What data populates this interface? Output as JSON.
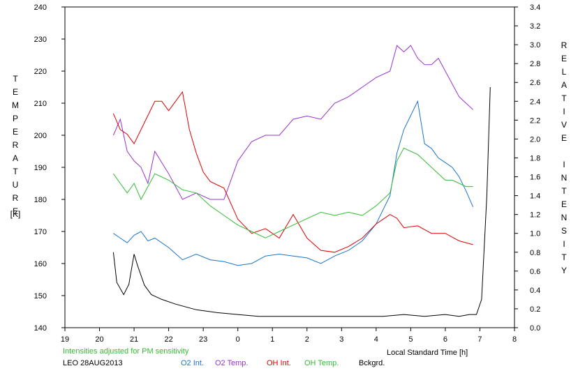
{
  "chart_data": {
    "type": "line",
    "xlabel": "Local Standard Time [h]",
    "ylabel_left": "TEMPERATURE",
    "ylabel_left_unit": "[K]",
    "ylabel_right": "RELATIVE INTENSITY",
    "x_ticks": [
      "19",
      "20",
      "21",
      "22",
      "23",
      "0",
      "1",
      "2",
      "3",
      "4",
      "5",
      "6",
      "7",
      "8"
    ],
    "x_range_hours_after_19": [
      0,
      13
    ],
    "y_left_range": [
      140,
      240
    ],
    "y_left_ticks": [
      "140",
      "150",
      "160",
      "170",
      "180",
      "190",
      "200",
      "210",
      "220",
      "230",
      "240"
    ],
    "y_right_range": [
      0,
      3.4
    ],
    "y_right_ticks": [
      "0.0",
      "0.2",
      "0.4",
      "0.6",
      "0.8",
      "1.0",
      "1.2",
      "1.4",
      "1.6",
      "1.8",
      "2.0",
      "2.2",
      "2.4",
      "2.6",
      "2.8",
      "3.0",
      "3.2",
      "3.4"
    ],
    "note": "Intensities adjusted for PM sensitivity",
    "station": "LEO 28AUG2013",
    "series": [
      {
        "name": "O2 Int.",
        "axis": "right",
        "color": "#1874cd",
        "x": [
          20.4,
          20.6,
          20.8,
          21.0,
          21.2,
          21.4,
          21.6,
          22.0,
          22.4,
          22.8,
          23.2,
          23.6,
          24.0,
          24.4,
          24.8,
          25.2,
          25.6,
          26.0,
          26.4,
          26.8,
          27.2,
          27.6,
          28.0,
          28.4,
          28.6,
          28.8,
          29.0,
          29.2,
          29.4,
          29.6,
          29.8,
          30.0,
          30.2,
          30.4,
          30.6,
          30.8
        ],
        "y": [
          1.0,
          0.95,
          0.9,
          0.98,
          1.02,
          0.92,
          0.95,
          0.85,
          0.72,
          0.78,
          0.72,
          0.7,
          0.66,
          0.68,
          0.76,
          0.78,
          0.76,
          0.74,
          0.68,
          0.76,
          0.82,
          0.92,
          1.1,
          1.4,
          1.85,
          2.1,
          2.25,
          2.4,
          1.95,
          1.9,
          1.8,
          1.75,
          1.7,
          1.6,
          1.45,
          1.28
        ]
      },
      {
        "name": "O2 Temp.",
        "axis": "left",
        "color": "#9933cc",
        "x": [
          20.4,
          20.6,
          20.8,
          21.0,
          21.2,
          21.4,
          21.6,
          22.0,
          22.4,
          22.8,
          23.2,
          23.6,
          24.0,
          24.4,
          24.8,
          25.2,
          25.6,
          26.0,
          26.4,
          26.8,
          27.2,
          27.6,
          28.0,
          28.4,
          28.6,
          28.8,
          29.0,
          29.2,
          29.4,
          29.6,
          29.8,
          30.0,
          30.2,
          30.4,
          30.6,
          30.8
        ],
        "y": [
          200,
          205,
          195,
          192,
          190,
          185,
          195,
          188,
          180,
          182,
          180,
          180,
          192,
          198,
          200,
          200,
          205,
          206,
          205,
          210,
          212,
          215,
          218,
          220,
          228,
          226,
          228,
          224,
          222,
          222,
          224,
          220,
          216,
          212,
          210,
          208
        ]
      },
      {
        "name": "OH Int.",
        "axis": "right",
        "color": "#dd0000",
        "x": [
          20.4,
          20.6,
          20.8,
          21.0,
          21.2,
          21.4,
          21.6,
          21.8,
          22.0,
          22.2,
          22.4,
          22.6,
          22.8,
          23.0,
          23.2,
          23.6,
          24.0,
          24.4,
          24.8,
          25.2,
          25.6,
          26.0,
          26.4,
          26.8,
          27.2,
          27.6,
          28.0,
          28.2,
          28.4,
          28.6,
          28.8,
          29.2,
          29.6,
          30.0,
          30.4,
          30.8
        ],
        "y": [
          2.27,
          2.1,
          2.05,
          1.95,
          2.1,
          2.25,
          2.4,
          2.4,
          2.3,
          2.4,
          2.5,
          2.1,
          1.85,
          1.65,
          1.55,
          1.48,
          1.15,
          1.0,
          1.05,
          0.95,
          1.2,
          0.95,
          0.82,
          0.8,
          0.86,
          0.95,
          1.1,
          1.15,
          1.2,
          1.16,
          1.06,
          1.08,
          1.0,
          1.0,
          0.92,
          0.88
        ]
      },
      {
        "name": "OH Temp.",
        "axis": "left",
        "color": "#33bb33",
        "x": [
          20.4,
          20.6,
          20.8,
          21.0,
          21.2,
          21.4,
          21.6,
          22.0,
          22.4,
          22.8,
          23.2,
          23.6,
          24.0,
          24.4,
          24.8,
          25.2,
          25.6,
          26.0,
          26.4,
          26.8,
          27.2,
          27.6,
          28.0,
          28.4,
          28.6,
          28.8,
          29.0,
          29.2,
          29.4,
          29.6,
          29.8,
          30.0,
          30.2,
          30.4,
          30.6,
          30.8
        ],
        "y": [
          188,
          185,
          182,
          185,
          180,
          184,
          188,
          186,
          183,
          182,
          178,
          175,
          172,
          170,
          168,
          170,
          172,
          174,
          176,
          175,
          176,
          175,
          178,
          182,
          192,
          196,
          195,
          194,
          192,
          190,
          188,
          186,
          186,
          185,
          184,
          184
        ]
      },
      {
        "name": "Bckgrd.",
        "axis": "right",
        "color": "#000000",
        "x": [
          20.4,
          20.5,
          20.7,
          20.85,
          21.0,
          21.1,
          21.3,
          21.5,
          21.8,
          22.2,
          22.8,
          23.4,
          24.0,
          24.6,
          25.2,
          25.8,
          26.4,
          27.0,
          27.6,
          28.2,
          28.8,
          29.4,
          30.0,
          30.4,
          30.7,
          30.9,
          31.05,
          31.2,
          31.3
        ],
        "y": [
          0.8,
          0.48,
          0.35,
          0.46,
          0.78,
          0.66,
          0.45,
          0.35,
          0.3,
          0.25,
          0.19,
          0.16,
          0.14,
          0.12,
          0.12,
          0.12,
          0.12,
          0.12,
          0.12,
          0.12,
          0.14,
          0.12,
          0.14,
          0.12,
          0.14,
          0.14,
          0.3,
          1.4,
          2.55
        ]
      }
    ]
  }
}
